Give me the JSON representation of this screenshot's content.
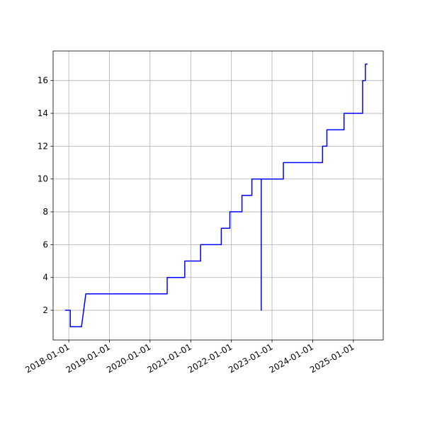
{
  "chart_data": {
    "type": "line",
    "x": [
      "2017-11-28",
      "2018-01-14",
      "2018-01-14",
      "2018-04-25",
      "2018-06-03",
      "2020-06-03",
      "2020-06-03",
      "2020-11-08",
      "2020-11-08",
      "2021-03-30",
      "2021-03-30",
      "2021-10-02",
      "2021-10-02",
      "2021-12-18",
      "2021-12-18",
      "2022-04-06",
      "2022-04-06",
      "2022-07-04",
      "2022-07-04",
      "2022-09-26",
      "2022-09-26",
      "2022-09-26",
      "2023-04-13",
      "2023-04-13",
      "2024-03-30",
      "2024-03-30",
      "2024-05-08",
      "2024-05-08",
      "2024-10-09",
      "2024-10-09",
      "2025-03-25",
      "2025-03-25",
      "2025-04-19",
      "2025-04-19",
      "2025-05-08"
    ],
    "series": [
      {
        "color": "#0000ff",
        "values": [
          2,
          2,
          1,
          1,
          3,
          3,
          4,
          4,
          5,
          5,
          6,
          6,
          7,
          7,
          8,
          8,
          9,
          9,
          10,
          10,
          2,
          10,
          10,
          11,
          11,
          12,
          12,
          13,
          13,
          14,
          14,
          16,
          16,
          17,
          17
        ]
      }
    ],
    "xlim": [
      "2017-08-13",
      "2025-09-26"
    ],
    "xticks": [
      "2018-01-01",
      "2019-01-01",
      "2020-01-01",
      "2021-01-01",
      "2022-01-01",
      "2023-01-01",
      "2024-01-01",
      "2025-01-01"
    ],
    "ylim": [
      0.19,
      17.8
    ],
    "yticks": [
      2,
      4,
      6,
      8,
      10,
      12,
      14,
      16
    ],
    "grid": true
  }
}
